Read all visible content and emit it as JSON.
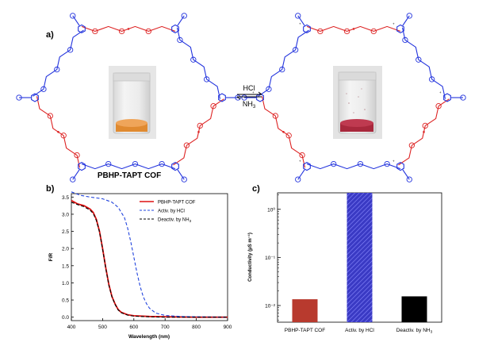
{
  "panel_a": {
    "label": "a)",
    "cof_name": "PBHP-TAPT COF",
    "reagent_forward": "HCl",
    "reagent_backward": "NH",
    "reagent_backward_sub": "3",
    "colors": {
      "triazine_frame": "#2233dd",
      "hydrazone_frame": "#dd2222",
      "powder_left": "#e08a30",
      "powder_right": "#a8283c"
    }
  },
  "panel_b": {
    "label": "b)",
    "chart_data": {
      "type": "line",
      "xlabel": "Wavelength (nm)",
      "ylabel": "F/R",
      "xlim": [
        400,
        900
      ],
      "ylim": [
        -0.1,
        3.6
      ],
      "xticks": [
        400,
        500,
        600,
        700,
        800,
        900
      ],
      "yticks": [
        "0.0",
        "0.5",
        "1.0",
        "1.5",
        "2.0",
        "2.5",
        "3.0",
        "3.5"
      ],
      "legend_position": "top-right",
      "series": [
        {
          "name": "PBHP-TAPT COF",
          "color": "#dd1111",
          "dash": "solid",
          "x": [
            400,
            420,
            440,
            460,
            470,
            480,
            490,
            500,
            510,
            520,
            530,
            540,
            550,
            560,
            580,
            600,
            650,
            700,
            800,
            900
          ],
          "y": [
            3.4,
            3.3,
            3.25,
            3.15,
            3.05,
            2.85,
            2.5,
            2.0,
            1.45,
            0.95,
            0.6,
            0.38,
            0.22,
            0.14,
            0.07,
            0.04,
            0.02,
            0.01,
            0.0,
            0.0
          ]
        },
        {
          "name": "Activ. by HCl",
          "color": "#2244dd",
          "dash": "dash",
          "x": [
            400,
            430,
            460,
            500,
            530,
            550,
            570,
            580,
            590,
            600,
            610,
            620,
            630,
            640,
            650,
            670,
            700,
            750,
            800,
            900
          ],
          "y": [
            3.65,
            3.55,
            3.5,
            3.45,
            3.35,
            3.2,
            2.9,
            2.6,
            2.2,
            1.75,
            1.3,
            0.9,
            0.6,
            0.4,
            0.26,
            0.12,
            0.05,
            0.02,
            0.01,
            0.0
          ]
        },
        {
          "name": "Deactiv. by NH",
          "name_sub": "3",
          "color": "#000000",
          "dash": "dash",
          "x": [
            400,
            420,
            440,
            460,
            470,
            480,
            490,
            500,
            510,
            520,
            530,
            540,
            550,
            560,
            580,
            600,
            650,
            700,
            800,
            900
          ],
          "y": [
            3.35,
            3.28,
            3.22,
            3.12,
            3.02,
            2.82,
            2.48,
            1.98,
            1.43,
            0.93,
            0.59,
            0.37,
            0.21,
            0.13,
            0.06,
            0.03,
            0.01,
            0.0,
            0.0,
            0.0
          ]
        }
      ]
    }
  },
  "panel_c": {
    "label": "c)",
    "chart_data": {
      "type": "bar",
      "ylabel": "Conductivity (μS m⁻¹)",
      "yscale": "log",
      "ylim": [
        0.0045,
        2.2
      ],
      "yticks": [
        {
          "label": "10⁻²",
          "value": 0.01
        },
        {
          "label": "10⁻¹",
          "value": 0.1
        },
        {
          "label": "10⁰",
          "value": 1
        }
      ],
      "categories": [
        "PBHP-TAPT COF",
        "Activ. by HCl",
        "Deactiv. by NH"
      ],
      "category_subs": [
        "",
        "",
        "3"
      ],
      "values": [
        0.0135,
        2.2,
        0.0155
      ],
      "colors": [
        "#b83a2e",
        "#3c3cc0",
        "#000000"
      ],
      "hatched": [
        false,
        true,
        false
      ]
    }
  }
}
